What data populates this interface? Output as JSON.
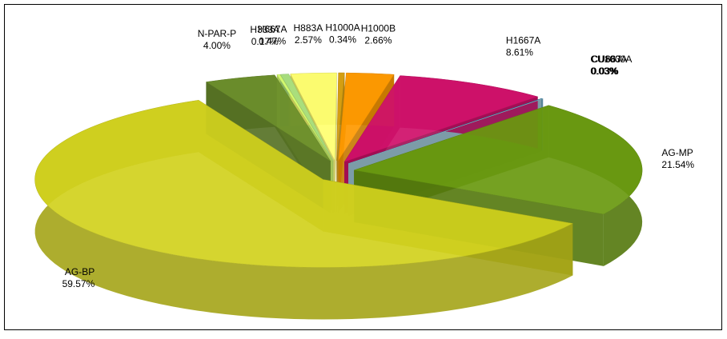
{
  "chart_data": {
    "type": "pie",
    "categories": [
      "AG-BP",
      "N-PAR-P",
      "H333A",
      "H667A",
      "H883A",
      "H1000A",
      "H1000B",
      "H1667A",
      "CU1000A",
      "CU883A",
      "CU667",
      "AG-MP"
    ],
    "values": [
      59.57,
      4.0,
      0.17,
      0.47,
      2.57,
      0.34,
      2.66,
      8.61,
      0.03,
      0.03,
      0.03,
      21.54
    ],
    "value_labels": [
      "59.57%",
      "4.00%",
      "0.17%",
      "0.47%",
      "2.57%",
      "0.34%",
      "2.66%",
      "8.61%",
      "0.03%",
      "0.03%",
      "0.03%",
      "21.54%"
    ],
    "colors": [
      "#d2d21e",
      "#6b8e2a",
      "#d8ff70",
      "#a8e080",
      "#ffff70",
      "#d8a010",
      "#ff9a00",
      "#d0106a",
      "#0a6a8a",
      "#3a90c0",
      "#a0c8d8",
      "#6a9a10"
    ]
  }
}
